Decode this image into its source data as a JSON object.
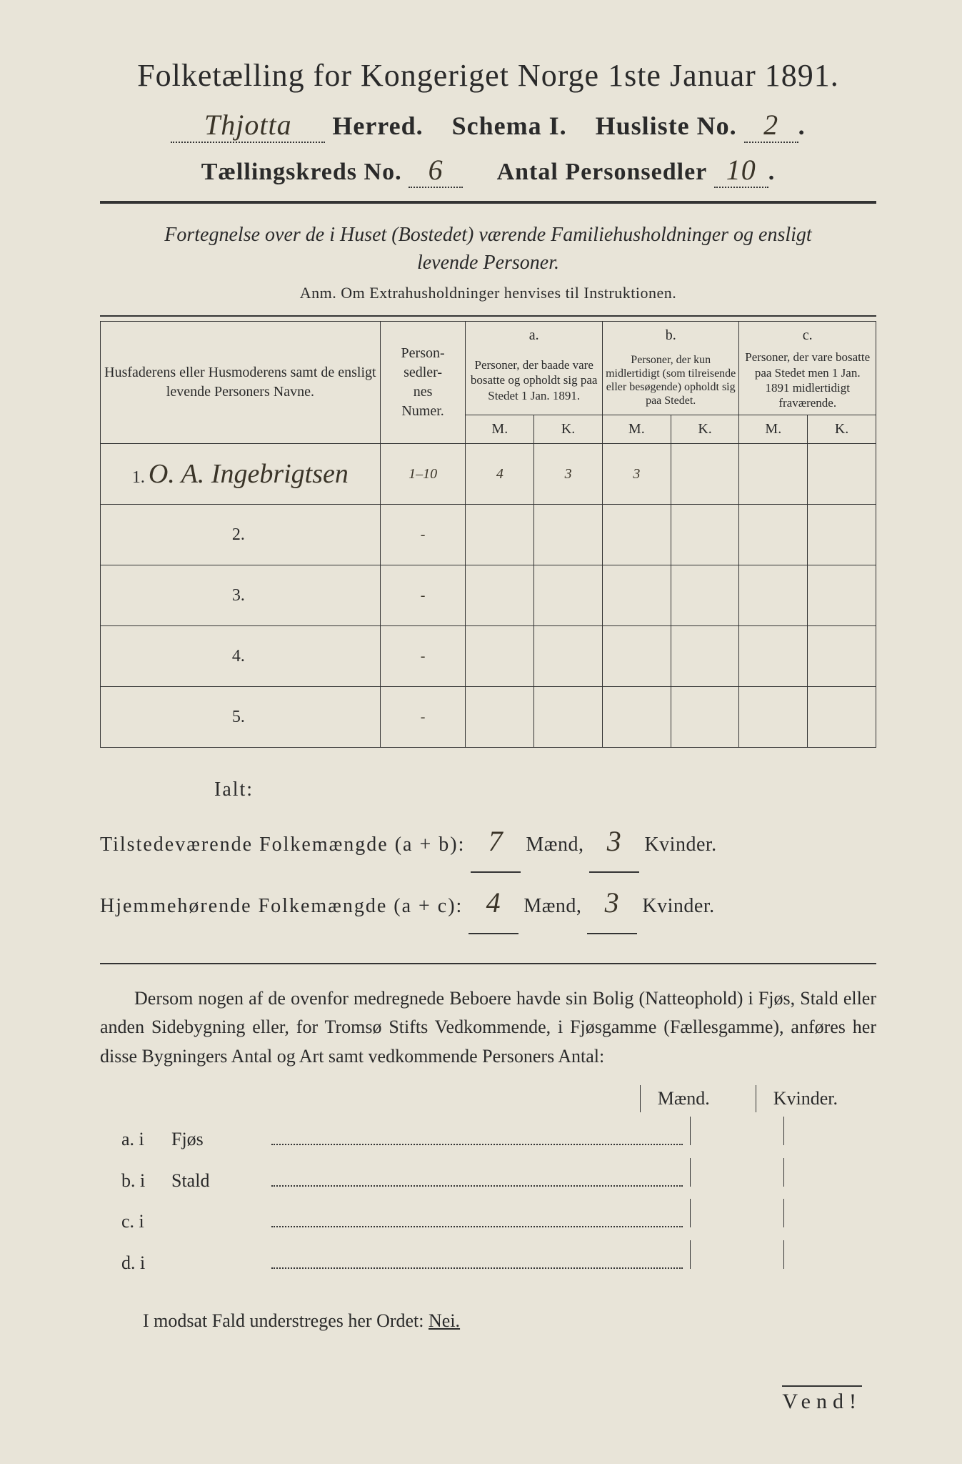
{
  "header": {
    "title": "Folketælling for Kongeriget Norge 1ste Januar 1891.",
    "herred_value": "Thjotta",
    "herred_label": "Herred.",
    "schema_label": "Schema I.",
    "husliste_label": "Husliste No.",
    "husliste_value": "2",
    "kreds_label": "Tællingskreds No.",
    "kreds_value": "6",
    "personsedler_label": "Antal Personsedler",
    "personsedler_value": "10"
  },
  "subtitle": {
    "line1": "Fortegnelse over de i Huset (Bostedet) værende Familiehusholdninger og ensligt",
    "line2": "levende Personer.",
    "anm": "Anm. Om Extrahusholdninger henvises til Instruktionen."
  },
  "table": {
    "col_names": "Husfaderens eller Husmoderens samt de ensligt levende Personers Navne.",
    "col_num": "Person-\nsedler-\nnes\nNumer.",
    "col_a_top": "a.",
    "col_a": "Personer, der baade vare bosatte og opholdt sig paa Stedet 1 Jan. 1891.",
    "col_b_top": "b.",
    "col_b": "Personer, der kun midlertidigt (som tilreisende eller besøgende) opholdt sig paa Stedet.",
    "col_c_top": "c.",
    "col_c": "Personer, der vare bosatte paa Stedet men 1 Jan. 1891 midlertidigt fraværende.",
    "m": "M.",
    "k": "K.",
    "rows": [
      {
        "n": "1.",
        "name": "O. A. Ingebrigtsen",
        "num": "1–10",
        "am": "4",
        "ak": "3",
        "bm": "3",
        "bk": "",
        "cm": "",
        "ck": ""
      },
      {
        "n": "2.",
        "name": "",
        "num": "-",
        "am": "",
        "ak": "",
        "bm": "",
        "bk": "",
        "cm": "",
        "ck": ""
      },
      {
        "n": "3.",
        "name": "",
        "num": "-",
        "am": "",
        "ak": "",
        "bm": "",
        "bk": "",
        "cm": "",
        "ck": ""
      },
      {
        "n": "4.",
        "name": "",
        "num": "-",
        "am": "",
        "ak": "",
        "bm": "",
        "bk": "",
        "cm": "",
        "ck": ""
      },
      {
        "n": "5.",
        "name": "",
        "num": "-",
        "am": "",
        "ak": "",
        "bm": "",
        "bk": "",
        "cm": "",
        "ck": ""
      }
    ]
  },
  "summary": {
    "ialt": "Ialt:",
    "line1_label": "Tilstedeværende Folkemængde (a + b):",
    "line1_m": "7",
    "line1_k": "3",
    "line2_label": "Hjemmehørende Folkemængde (a + c):",
    "line2_m": "4",
    "line2_k": "3",
    "maend": "Mænd,",
    "kvinder": "Kvinder."
  },
  "paragraph": "Dersom nogen af de ovenfor medregnede Beboere havde sin Bolig (Natteophold) i Fjøs, Stald eller anden Sidebygning eller, for Tromsø Stifts Vedkommende, i Fjøsgamme (Fællesgamme), anføres her disse Bygningers Antal og Art samt vedkommende Personers Antal:",
  "outbuildings": {
    "maend": "Mænd.",
    "kvinder": "Kvinder.",
    "rows": [
      {
        "lbl": "a.  i",
        "name": "Fjøs"
      },
      {
        "lbl": "b.  i",
        "name": "Stald"
      },
      {
        "lbl": "c.  i",
        "name": ""
      },
      {
        "lbl": "d.  i",
        "name": ""
      }
    ]
  },
  "nei_line": {
    "text": "I modsat Fald understreges her Ordet:",
    "nei": "Nei."
  },
  "vend": "Vend!",
  "colors": {
    "paper": "#e8e4d8",
    "ink": "#2a2a2a",
    "handwriting": "#3a3428",
    "background": "#1a1a1a"
  }
}
